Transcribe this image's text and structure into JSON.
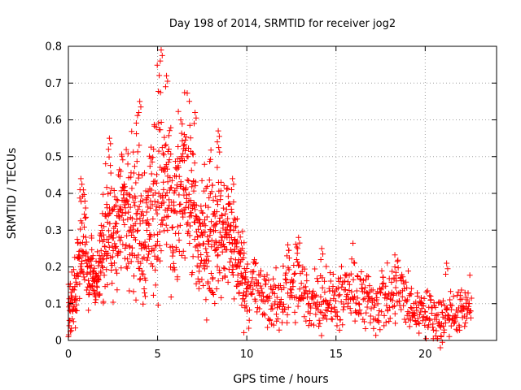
{
  "chart_data": {
    "type": "scatter",
    "title": "Day 198 of 2014, SRMTID for receiver jog2",
    "xlabel": "GPS time / hours",
    "ylabel": "SRMTID / TECUs",
    "xlim": [
      0,
      24
    ],
    "ylim": [
      0,
      0.8
    ],
    "x_ticks": [
      0,
      5,
      10,
      15,
      20
    ],
    "x_tick_labels": [
      "0",
      "5",
      "10",
      "15",
      "20"
    ],
    "y_ticks": [
      0,
      0.1,
      0.2,
      0.3,
      0.4,
      0.5,
      0.6,
      0.7,
      0.8
    ],
    "y_tick_labels": [
      "0",
      "0.1",
      "0.2",
      "0.3",
      "0.4",
      "0.5",
      "0.6",
      "0.7",
      "0.8"
    ],
    "grid": true,
    "marker": "plus",
    "series": [
      {
        "name": "SRMTID",
        "color": "#ff0000",
        "x": [
          0.0,
          0.1,
          0.2,
          0.3,
          0.4,
          0.5,
          0.6,
          0.7,
          0.8,
          0.9,
          1.0,
          1.1,
          1.2,
          1.3,
          1.4,
          1.5,
          1.6,
          1.7,
          1.8,
          1.9,
          2.0,
          2.1,
          2.2,
          2.3,
          2.4,
          2.5,
          2.6,
          2.7,
          2.8,
          2.9,
          3.0,
          3.1,
          3.2,
          3.3,
          3.4,
          3.5,
          3.6,
          3.7,
          3.8,
          3.9,
          4.0,
          4.1,
          4.2,
          4.3,
          4.4,
          4.5,
          4.6,
          4.7,
          4.8,
          4.9,
          5.0,
          5.1,
          5.2,
          5.3,
          5.4,
          5.5,
          5.6,
          5.7,
          5.8,
          5.9,
          6.0,
          6.1,
          6.2,
          6.3,
          6.4,
          6.5,
          6.6,
          6.7,
          6.8,
          6.9,
          7.0,
          7.1,
          7.2,
          7.3,
          7.4,
          7.5,
          7.6,
          7.7,
          7.8,
          7.9,
          8.0,
          8.1,
          8.2,
          8.3,
          8.4,
          8.5,
          8.6,
          8.7,
          8.8,
          8.9,
          9.0,
          9.1,
          9.2,
          9.3,
          9.4,
          9.5,
          9.6,
          9.7,
          9.8,
          9.9,
          10.0,
          10.2,
          10.4,
          10.6,
          10.8,
          11.0,
          11.2,
          11.4,
          11.6,
          11.8,
          12.0,
          12.2,
          12.4,
          12.6,
          12.8,
          13.0,
          13.2,
          13.4,
          13.6,
          13.8,
          14.0,
          14.2,
          14.4,
          14.6,
          14.8,
          15.0,
          15.2,
          15.4,
          15.6,
          15.8,
          16.0,
          16.2,
          16.4,
          16.6,
          16.8,
          17.0,
          17.2,
          17.4,
          17.6,
          17.8,
          18.0,
          18.2,
          18.4,
          18.6,
          18.8,
          19.0,
          19.2,
          19.4,
          19.6,
          19.8,
          20.0,
          20.2,
          20.4,
          20.6,
          20.8,
          21.0,
          21.2,
          21.4,
          21.6,
          21.8,
          22.0,
          22.2,
          22.4,
          22.6
        ],
        "y": [
          0.1,
          0.08,
          0.1,
          0.12,
          0.15,
          0.2,
          0.23,
          0.25,
          0.27,
          0.35,
          0.25,
          0.2,
          0.17,
          0.21,
          0.16,
          0.15,
          0.18,
          0.17,
          0.22,
          0.23,
          0.26,
          0.3,
          0.33,
          0.35,
          0.25,
          0.22,
          0.3,
          0.3,
          0.35,
          0.33,
          0.37,
          0.38,
          0.32,
          0.35,
          0.37,
          0.4,
          0.36,
          0.33,
          0.35,
          0.38,
          0.34,
          0.32,
          0.3,
          0.3,
          0.28,
          0.35,
          0.38,
          0.35,
          0.4,
          0.42,
          0.42,
          0.45,
          0.4,
          0.41,
          0.43,
          0.4,
          0.38,
          0.35,
          0.32,
          0.3,
          0.33,
          0.35,
          0.37,
          0.42,
          0.44,
          0.45,
          0.48,
          0.42,
          0.4,
          0.37,
          0.35,
          0.3,
          0.26,
          0.25,
          0.28,
          0.3,
          0.27,
          0.26,
          0.28,
          0.3,
          0.32,
          0.28,
          0.29,
          0.3,
          0.33,
          0.32,
          0.3,
          0.27,
          0.28,
          0.29,
          0.3,
          0.28,
          0.27,
          0.26,
          0.24,
          0.22,
          0.2,
          0.2,
          0.17,
          0.16,
          0.15,
          0.15,
          0.16,
          0.13,
          0.12,
          0.12,
          0.11,
          0.11,
          0.1,
          0.1,
          0.13,
          0.16,
          0.14,
          0.13,
          0.16,
          0.14,
          0.12,
          0.11,
          0.1,
          0.12,
          0.12,
          0.11,
          0.13,
          0.1,
          0.1,
          0.12,
          0.11,
          0.1,
          0.12,
          0.13,
          0.14,
          0.13,
          0.12,
          0.1,
          0.11,
          0.1,
          0.1,
          0.1,
          0.12,
          0.11,
          0.1,
          0.12,
          0.15,
          0.13,
          0.11,
          0.1,
          0.09,
          0.08,
          0.08,
          0.09,
          0.08,
          0.07,
          0.07,
          0.07,
          0.06,
          0.06,
          0.07,
          0.08,
          0.07,
          0.07,
          0.08,
          0.09,
          0.1,
          0.1
        ],
        "spread": [
          0.04,
          0.04,
          0.04,
          0.05,
          0.05,
          0.06,
          0.06,
          0.07,
          0.07,
          0.08,
          0.06,
          0.05,
          0.05,
          0.05,
          0.04,
          0.04,
          0.05,
          0.05,
          0.06,
          0.06,
          0.07,
          0.08,
          0.1,
          0.1,
          0.08,
          0.07,
          0.08,
          0.08,
          0.09,
          0.09,
          0.09,
          0.09,
          0.08,
          0.09,
          0.09,
          0.1,
          0.1,
          0.1,
          0.11,
          0.13,
          0.12,
          0.1,
          0.1,
          0.11,
          0.1,
          0.1,
          0.1,
          0.1,
          0.12,
          0.15,
          0.16,
          0.15,
          0.12,
          0.12,
          0.12,
          0.1,
          0.1,
          0.1,
          0.1,
          0.1,
          0.1,
          0.1,
          0.1,
          0.1,
          0.11,
          0.1,
          0.1,
          0.1,
          0.1,
          0.1,
          0.1,
          0.1,
          0.1,
          0.09,
          0.09,
          0.09,
          0.09,
          0.09,
          0.09,
          0.1,
          0.1,
          0.09,
          0.09,
          0.09,
          0.09,
          0.09,
          0.09,
          0.08,
          0.08,
          0.08,
          0.08,
          0.07,
          0.07,
          0.07,
          0.07,
          0.06,
          0.06,
          0.06,
          0.06,
          0.05,
          0.05,
          0.05,
          0.05,
          0.05,
          0.04,
          0.04,
          0.04,
          0.04,
          0.04,
          0.04,
          0.05,
          0.06,
          0.05,
          0.05,
          0.06,
          0.05,
          0.05,
          0.04,
          0.04,
          0.04,
          0.04,
          0.04,
          0.05,
          0.04,
          0.04,
          0.04,
          0.04,
          0.04,
          0.05,
          0.05,
          0.05,
          0.05,
          0.05,
          0.04,
          0.04,
          0.04,
          0.04,
          0.04,
          0.05,
          0.04,
          0.04,
          0.05,
          0.06,
          0.05,
          0.04,
          0.04,
          0.04,
          0.03,
          0.03,
          0.03,
          0.03,
          0.03,
          0.03,
          0.03,
          0.03,
          0.03,
          0.03,
          0.03,
          0.03,
          0.03,
          0.03,
          0.03,
          0.03,
          0.03
        ],
        "peaks": [
          [
            0.7,
            0.44
          ],
          [
            2.3,
            0.55
          ],
          [
            4.0,
            0.65
          ],
          [
            5.2,
            0.79
          ],
          [
            5.5,
            0.72
          ],
          [
            6.5,
            0.56
          ],
          [
            7.1,
            0.62
          ],
          [
            8.4,
            0.57
          ],
          [
            9.2,
            0.44
          ],
          [
            12.3,
            0.26
          ],
          [
            12.9,
            0.28
          ],
          [
            14.2,
            0.25
          ],
          [
            18.3,
            0.2
          ],
          [
            21.2,
            0.21
          ],
          [
            0.05,
            0.04
          ],
          [
            20.9,
            0.01
          ]
        ]
      }
    ]
  }
}
